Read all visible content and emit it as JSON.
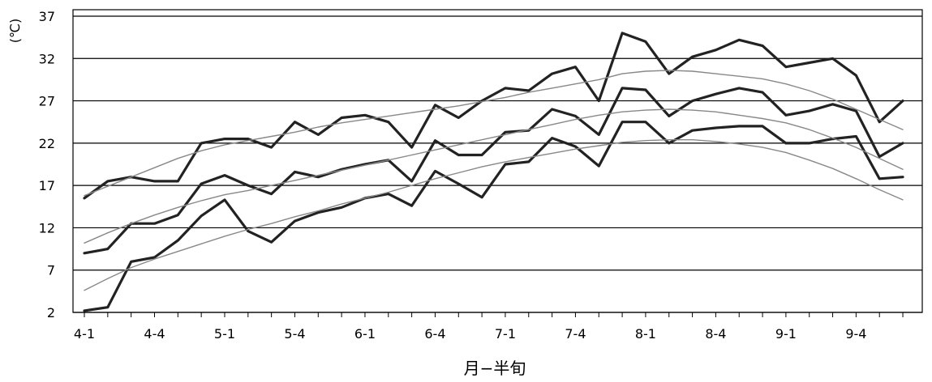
{
  "chart_data": {
    "type": "line",
    "xlabel": "月−半旬",
    "ylabel": "(℃)",
    "ylim": [
      2,
      37
    ],
    "yticks": [
      2,
      7,
      12,
      17,
      22,
      27,
      32,
      37
    ],
    "x_tick_labels": [
      "4-1",
      "4-4",
      "5-1",
      "5-4",
      "6-1",
      "6-4",
      "7-1",
      "7-4",
      "8-1",
      "8-4",
      "9-1",
      "9-4"
    ],
    "grid": "horizontal",
    "legend": "none",
    "colors": {
      "observed": "#222222",
      "smoothed": "#888888",
      "grid": "#000000"
    },
    "x": [
      "4-1",
      "4-2",
      "4-3",
      "4-4",
      "4-5",
      "4-6",
      "5-1",
      "5-2",
      "5-3",
      "5-4",
      "5-5",
      "5-6",
      "6-1",
      "6-2",
      "6-3",
      "6-4",
      "6-5",
      "6-6",
      "7-1",
      "7-2",
      "7-3",
      "7-4",
      "7-5",
      "7-6",
      "8-1",
      "8-2",
      "8-3",
      "8-4",
      "8-5",
      "8-6",
      "9-1",
      "9-2",
      "9-3",
      "9-4",
      "9-5",
      "9-6"
    ],
    "series": [
      {
        "style": "observed",
        "values": [
          15.5,
          17.5,
          18.0,
          17.5,
          17.5,
          22.0,
          22.5,
          22.5,
          21.5,
          24.5,
          23.0,
          25.0,
          25.3,
          24.5,
          21.5,
          26.5,
          25.0,
          27.0,
          28.5,
          28.2,
          30.2,
          31.0,
          27.0,
          35.0,
          34.0,
          30.2,
          32.2,
          33.0,
          34.2,
          33.5,
          31.0,
          31.5,
          32.0,
          30.0,
          24.5,
          27.0
        ]
      },
      {
        "style": "observed",
        "values": [
          9.0,
          9.5,
          12.5,
          12.5,
          13.5,
          17.2,
          18.2,
          17.0,
          16.0,
          18.6,
          18.0,
          18.9,
          19.5,
          20.0,
          17.5,
          22.3,
          20.6,
          20.6,
          23.3,
          23.5,
          26.0,
          25.2,
          23.0,
          28.5,
          28.3,
          25.2,
          27.0,
          27.8,
          28.5,
          28.0,
          25.3,
          25.8,
          26.6,
          25.8,
          20.4,
          22.0
        ]
      },
      {
        "style": "observed",
        "values": [
          2.2,
          2.6,
          8.0,
          8.5,
          10.5,
          13.4,
          15.3,
          11.6,
          10.3,
          12.8,
          13.8,
          14.4,
          15.5,
          16.0,
          14.6,
          18.7,
          17.2,
          15.6,
          19.5,
          19.8,
          22.6,
          21.6,
          19.3,
          24.5,
          24.5,
          22.0,
          23.5,
          23.8,
          24.0,
          24.0,
          22.0,
          22.0,
          22.5,
          22.8,
          17.8,
          18.0
        ]
      },
      {
        "style": "smoothed",
        "values": [
          15.8,
          16.9,
          18.0,
          19.1,
          20.2,
          21.1,
          21.8,
          22.3,
          22.8,
          23.3,
          23.9,
          24.4,
          24.8,
          25.2,
          25.6,
          26.0,
          26.4,
          26.9,
          27.4,
          28.0,
          28.5,
          29.0,
          29.5,
          30.2,
          30.5,
          30.6,
          30.5,
          30.2,
          29.9,
          29.6,
          29.0,
          28.2,
          27.2,
          26.0,
          24.8,
          23.6
        ]
      },
      {
        "style": "smoothed",
        "values": [
          10.2,
          11.4,
          12.5,
          13.5,
          14.4,
          15.2,
          15.9,
          16.4,
          17.0,
          17.6,
          18.2,
          18.8,
          19.4,
          20.0,
          20.6,
          21.2,
          21.8,
          22.4,
          23.0,
          23.6,
          24.2,
          24.8,
          25.3,
          25.7,
          25.9,
          26.0,
          25.9,
          25.7,
          25.3,
          24.9,
          24.4,
          23.6,
          22.6,
          21.5,
          20.2,
          18.9
        ]
      },
      {
        "style": "smoothed",
        "values": [
          4.6,
          6.0,
          7.3,
          8.3,
          9.2,
          10.1,
          11.0,
          11.8,
          12.5,
          13.3,
          14.0,
          14.8,
          15.5,
          16.2,
          17.0,
          17.8,
          18.5,
          19.2,
          19.8,
          20.3,
          20.8,
          21.3,
          21.7,
          22.1,
          22.3,
          22.4,
          22.4,
          22.2,
          21.9,
          21.5,
          20.9,
          20.0,
          19.0,
          17.8,
          16.5,
          15.3
        ]
      }
    ]
  }
}
